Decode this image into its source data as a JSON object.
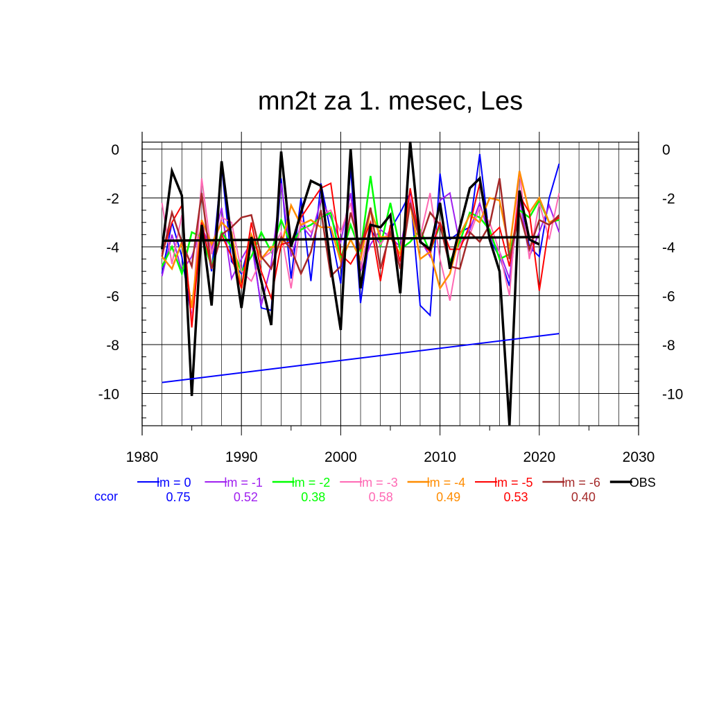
{
  "chart_data": {
    "type": "line",
    "title": "mn2t za 1. mesec, Les",
    "xlabel": "",
    "ylabel": "",
    "xlim": [
      1980,
      2030
    ],
    "ylim": [
      -11.4,
      0.3
    ],
    "xticks": [
      1980,
      1990,
      2000,
      2010,
      2020,
      2030
    ],
    "yticks": [
      0,
      -2,
      -4,
      -6,
      -8,
      -10
    ],
    "grid": true,
    "legend_position": "bottom",
    "ccor_label": "ccor",
    "x": [
      1982,
      1983,
      1984,
      1985,
      1986,
      1987,
      1988,
      1989,
      1990,
      1991,
      1992,
      1993,
      1994,
      1995,
      1996,
      1997,
      1998,
      1999,
      2000,
      2001,
      2002,
      2003,
      2004,
      2005,
      2006,
      2007,
      2008,
      2009,
      2010,
      2011,
      2012,
      2013,
      2014,
      2015,
      2016,
      2017,
      2018,
      2019,
      2020,
      2021,
      2022
    ],
    "series": [
      {
        "name": "lm = 0",
        "ccor": "0.75",
        "color": "#0000ff",
        "width": 2,
        "values": [
          -5.1,
          -3.0,
          -4.4,
          -6.9,
          -2.9,
          -5.0,
          -0.7,
          -4.6,
          -5.1,
          -3.6,
          -6.5,
          -6.6,
          -1.2,
          -5.3,
          -2.0,
          -5.4,
          -1.4,
          -3.4,
          -5.5,
          -0.8,
          -6.3,
          -3.3,
          -3.9,
          -3.3,
          -2.6,
          -1.8,
          -6.4,
          -6.8,
          -1.0,
          -3.7,
          -3.4,
          -3.2,
          -0.2,
          -3.7,
          -4.4,
          -5.6,
          -1.7,
          -4.0,
          -4.4,
          -2.0,
          -0.6
        ]
      },
      {
        "name": "lm = -1",
        "ccor": "0.52",
        "color": "#a020f0",
        "width": 2,
        "values": [
          -5.2,
          -3.5,
          -5.0,
          -4.4,
          -3.2,
          -4.1,
          -2.4,
          -5.3,
          -4.5,
          -3.8,
          -6.4,
          -4.7,
          -1.4,
          -4.4,
          -3.1,
          -3.6,
          -2.1,
          -2.8,
          -3.8,
          -1.8,
          -5.0,
          -3.9,
          -3.3,
          -3.6,
          -4.0,
          -2.1,
          -3.7,
          -4.4,
          -2.1,
          -1.8,
          -3.9,
          -3.3,
          -2.2,
          -3.6,
          -4.2,
          -5.3,
          -2.0,
          -4.4,
          -3.4,
          -2.3,
          -3.4
        ]
      },
      {
        "name": "lm = -2",
        "ccor": "0.38",
        "color": "#00ff00",
        "width": 2.5,
        "values": [
          -4.8,
          -4.0,
          -5.1,
          -3.4,
          -3.6,
          -4.8,
          -3.4,
          -4.0,
          -5.0,
          -4.4,
          -3.4,
          -4.2,
          -2.9,
          -3.9,
          -3.3,
          -3.1,
          -2.8,
          -2.6,
          -4.5,
          -3.1,
          -4.2,
          -1.1,
          -4.0,
          -2.2,
          -4.1,
          -3.8,
          -3.3,
          -4.2,
          -3.1,
          -4.6,
          -3.8,
          -2.6,
          -2.8,
          -3.3,
          -4.5,
          -4.3,
          -2.5,
          -2.8,
          -2.1,
          -3.0,
          -2.9
        ]
      },
      {
        "name": "lm = -3",
        "ccor": "0.58",
        "color": "#ff69b4",
        "width": 2,
        "values": [
          -2.2,
          -4.7,
          -2.7,
          -7.1,
          -1.2,
          -4.3,
          -2.8,
          -3.0,
          -5.0,
          -5.4,
          -4.5,
          -4.2,
          -3.4,
          -5.7,
          -2.9,
          -3.4,
          -2.7,
          -2.5,
          -3.4,
          -2.2,
          -4.9,
          -3.0,
          -3.9,
          -3.3,
          -4.8,
          -1.9,
          -3.6,
          -1.8,
          -4.5,
          -6.2,
          -3.9,
          -3.5,
          -2.4,
          -3.0,
          -4.2,
          -6.0,
          -0.9,
          -4.5,
          -2.2,
          -3.7,
          -1.8
        ]
      },
      {
        "name": "lm = -4",
        "ccor": "0.49",
        "color": "#ff8c00",
        "width": 2.5,
        "values": [
          -4.4,
          -4.9,
          -3.8,
          -6.5,
          -2.9,
          -3.9,
          -3.0,
          -3.4,
          -5.7,
          -3.5,
          -4.5,
          -4.0,
          -4.0,
          -2.3,
          -3.1,
          -2.9,
          -3.2,
          -3.2,
          -4.6,
          -3.7,
          -4.5,
          -2.5,
          -3.6,
          -3.6,
          -4.3,
          -2.2,
          -4.5,
          -4.2,
          -5.7,
          -5.1,
          -3.5,
          -2.7,
          -3.0,
          -2.0,
          -2.1,
          -4.1,
          -0.9,
          -2.6,
          -2.0,
          -3.0,
          -2.8
        ]
      },
      {
        "name": "lm = -5",
        "ccor": "0.53",
        "color": "#ff0000",
        "width": 2,
        "values": [
          -4.3,
          -3.0,
          -2.3,
          -7.3,
          -3.0,
          -4.9,
          -3.5,
          -4.4,
          -5.7,
          -3.0,
          -5.0,
          -6.1,
          -3.9,
          -3.8,
          -2.8,
          -2.2,
          -1.6,
          -1.4,
          -4.3,
          -4.7,
          -4.0,
          -3.0,
          -5.4,
          -3.1,
          -4.6,
          -1.6,
          -3.8,
          -4.2,
          -3.0,
          -4.1,
          -4.1,
          -3.1,
          -1.4,
          -3.6,
          -3.2,
          -4.8,
          -1.9,
          -2.6,
          -5.8,
          -3.1,
          -2.8
        ]
      },
      {
        "name": "lm = -6",
        "ccor": "0.40",
        "color": "#a52a2a",
        "width": 2.5,
        "values": [
          -4.4,
          -2.6,
          -3.8,
          -4.8,
          -1.8,
          -4.9,
          -3.5,
          -3.2,
          -2.8,
          -2.7,
          -4.4,
          -4.9,
          -3.6,
          -4.1,
          -5.1,
          -4.2,
          -2.5,
          -5.2,
          -4.8,
          -2.6,
          -4.1,
          -2.4,
          -4.9,
          -3.4,
          -4.9,
          -2.2,
          -3.8,
          -2.6,
          -3.1,
          -4.8,
          -4.9,
          -3.4,
          -3.8,
          -3.1,
          -1.2,
          -4.5,
          -2.6,
          -4.1,
          -2.9,
          -3.1,
          -2.7
        ]
      },
      {
        "name": "OBS",
        "ccor": "",
        "color": "#000000",
        "width": 3.5,
        "values": [
          -4.1,
          -0.9,
          -1.9,
          -10.1,
          -3.1,
          -6.4,
          -0.5,
          -3.7,
          -6.5,
          -3.6,
          -5.4,
          -7.2,
          -0.1,
          -4.0,
          -2.6,
          -1.3,
          -1.5,
          -4.8,
          -7.4,
          0.0,
          -5.7,
          -3.1,
          -3.2,
          -2.7,
          -5.9,
          0.3,
          -3.8,
          -4.1,
          -2.2,
          -4.9,
          -3.2,
          -1.6,
          -1.2,
          -3.7,
          -5.0,
          -11.3,
          -1.7,
          -3.7,
          -3.9,
          null,
          null
        ]
      }
    ],
    "trend_lines": [
      {
        "name": "OBS mean",
        "color": "#000000",
        "width": 3.5,
        "x": [
          1982,
          2020
        ],
        "y": [
          -3.75,
          -3.6
        ]
      },
      {
        "name": "lm = 0 trend",
        "color": "#0000ff",
        "width": 2,
        "x": [
          1982,
          2022
        ],
        "y": [
          -9.55,
          -7.55
        ]
      }
    ]
  }
}
